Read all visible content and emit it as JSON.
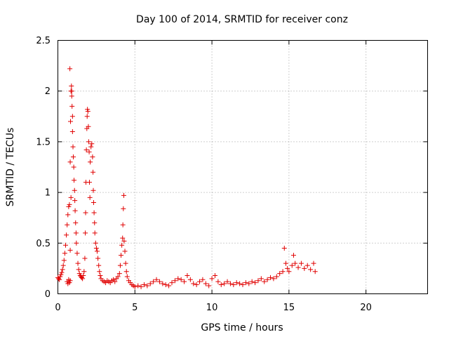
{
  "chart_data": {
    "type": "scatter",
    "title": "Day 100 of 2014, SRMTID for receiver conz",
    "xlabel": "GPS time / hours",
    "ylabel": "SRMTID / TECUs",
    "xlim": [
      0,
      24
    ],
    "ylim": [
      0,
      2.5
    ],
    "xticks": [
      0,
      5,
      10,
      15,
      20
    ],
    "xtick_labels": [
      "0",
      "5",
      "10",
      "15",
      "20"
    ],
    "yticks": [
      0,
      0.5,
      1,
      1.5,
      2,
      2.5
    ],
    "ytick_labels": [
      "0",
      "0.5",
      "1",
      "1.5",
      "2",
      "2.5"
    ],
    "grid": true,
    "marker": "+",
    "color": "#ff0000",
    "series": [
      {
        "name": "SRMTID",
        "points": [
          [
            0.0,
            0.16
          ],
          [
            0.05,
            0.15
          ],
          [
            0.1,
            0.14
          ],
          [
            0.15,
            0.17
          ],
          [
            0.2,
            0.19
          ],
          [
            0.25,
            0.21
          ],
          [
            0.3,
            0.24
          ],
          [
            0.35,
            0.28
          ],
          [
            0.4,
            0.33
          ],
          [
            0.45,
            0.4
          ],
          [
            0.5,
            0.48
          ],
          [
            0.55,
            0.58
          ],
          [
            0.6,
            0.68
          ],
          [
            0.65,
            0.78
          ],
          [
            0.7,
            0.86
          ],
          [
            0.6,
            0.12
          ],
          [
            0.65,
            0.1
          ],
          [
            0.7,
            0.14
          ],
          [
            0.75,
            0.11
          ],
          [
            0.8,
            0.13
          ],
          [
            0.75,
            0.88
          ],
          [
            0.8,
            0.43
          ],
          [
            0.85,
            0.95
          ],
          [
            0.8,
            1.3
          ],
          [
            0.82,
            1.7
          ],
          [
            0.85,
            2.0
          ],
          [
            0.88,
            2.05
          ],
          [
            0.9,
            1.95
          ],
          [
            0.92,
            1.85
          ],
          [
            0.95,
            1.75
          ],
          [
            0.78,
            2.22
          ],
          [
            0.9,
            2.0
          ],
          [
            0.95,
            1.6
          ],
          [
            0.98,
            1.45
          ],
          [
            1.0,
            1.35
          ],
          [
            1.03,
            1.25
          ],
          [
            1.05,
            1.12
          ],
          [
            1.08,
            1.02
          ],
          [
            1.1,
            0.92
          ],
          [
            1.12,
            0.82
          ],
          [
            1.15,
            0.7
          ],
          [
            1.18,
            0.6
          ],
          [
            1.2,
            0.5
          ],
          [
            1.25,
            0.4
          ],
          [
            1.3,
            0.3
          ],
          [
            1.35,
            0.24
          ],
          [
            1.4,
            0.2
          ],
          [
            1.45,
            0.18
          ],
          [
            1.5,
            0.17
          ],
          [
            1.55,
            0.16
          ],
          [
            1.6,
            0.15
          ],
          [
            1.65,
            0.18
          ],
          [
            1.7,
            0.22
          ],
          [
            1.75,
            0.35
          ],
          [
            1.78,
            0.6
          ],
          [
            1.8,
            0.8
          ],
          [
            1.82,
            1.1
          ],
          [
            1.85,
            1.42
          ],
          [
            1.88,
            1.63
          ],
          [
            1.9,
            1.75
          ],
          [
            1.92,
            1.82
          ],
          [
            1.95,
            1.8
          ],
          [
            1.98,
            1.65
          ],
          [
            2.0,
            1.5
          ],
          [
            2.03,
            1.4
          ],
          [
            2.05,
            1.1
          ],
          [
            2.08,
            0.95
          ],
          [
            2.1,
            1.3
          ],
          [
            2.15,
            1.45
          ],
          [
            2.2,
            1.48
          ],
          [
            2.25,
            1.35
          ],
          [
            2.28,
            1.2
          ],
          [
            2.3,
            1.02
          ],
          [
            2.32,
            0.9
          ],
          [
            2.35,
            0.8
          ],
          [
            2.38,
            0.7
          ],
          [
            2.4,
            0.6
          ],
          [
            2.45,
            0.5
          ],
          [
            2.5,
            0.45
          ],
          [
            2.55,
            0.42
          ],
          [
            2.6,
            0.35
          ],
          [
            2.65,
            0.28
          ],
          [
            2.7,
            0.22
          ],
          [
            2.75,
            0.18
          ],
          [
            2.8,
            0.15
          ],
          [
            2.9,
            0.13
          ],
          [
            3.0,
            0.12
          ],
          [
            3.1,
            0.11
          ],
          [
            3.2,
            0.13
          ],
          [
            3.3,
            0.12
          ],
          [
            3.4,
            0.11
          ],
          [
            3.5,
            0.13
          ],
          [
            3.6,
            0.14
          ],
          [
            3.7,
            0.12
          ],
          [
            3.8,
            0.15
          ],
          [
            3.9,
            0.17
          ],
          [
            4.0,
            0.2
          ],
          [
            4.05,
            0.28
          ],
          [
            4.1,
            0.38
          ],
          [
            4.15,
            0.48
          ],
          [
            4.2,
            0.55
          ],
          [
            4.22,
            0.68
          ],
          [
            4.25,
            0.84
          ],
          [
            4.28,
            0.97
          ],
          [
            4.3,
            0.52
          ],
          [
            4.35,
            0.42
          ],
          [
            4.4,
            0.3
          ],
          [
            4.45,
            0.22
          ],
          [
            4.5,
            0.17
          ],
          [
            4.6,
            0.13
          ],
          [
            4.7,
            0.11
          ],
          [
            4.8,
            0.09
          ],
          [
            4.9,
            0.08
          ],
          [
            5.0,
            0.07
          ],
          [
            5.2,
            0.08
          ],
          [
            5.4,
            0.07
          ],
          [
            5.6,
            0.09
          ],
          [
            5.8,
            0.08
          ],
          [
            6.0,
            0.1
          ],
          [
            6.2,
            0.12
          ],
          [
            6.4,
            0.14
          ],
          [
            6.6,
            0.12
          ],
          [
            6.8,
            0.1
          ],
          [
            7.0,
            0.09
          ],
          [
            7.2,
            0.08
          ],
          [
            7.4,
            0.11
          ],
          [
            7.6,
            0.13
          ],
          [
            7.8,
            0.15
          ],
          [
            8.0,
            0.14
          ],
          [
            8.2,
            0.12
          ],
          [
            8.4,
            0.18
          ],
          [
            8.6,
            0.14
          ],
          [
            8.8,
            0.1
          ],
          [
            9.0,
            0.09
          ],
          [
            9.2,
            0.12
          ],
          [
            9.4,
            0.14
          ],
          [
            9.6,
            0.1
          ],
          [
            9.8,
            0.08
          ],
          [
            10.0,
            0.15
          ],
          [
            10.2,
            0.18
          ],
          [
            10.4,
            0.12
          ],
          [
            10.6,
            0.09
          ],
          [
            10.8,
            0.1
          ],
          [
            11.0,
            0.12
          ],
          [
            11.2,
            0.1
          ],
          [
            11.4,
            0.09
          ],
          [
            11.6,
            0.11
          ],
          [
            11.8,
            0.1
          ],
          [
            12.0,
            0.09
          ],
          [
            12.2,
            0.11
          ],
          [
            12.4,
            0.1
          ],
          [
            12.6,
            0.12
          ],
          [
            12.8,
            0.11
          ],
          [
            13.0,
            0.13
          ],
          [
            13.2,
            0.15
          ],
          [
            13.4,
            0.12
          ],
          [
            13.6,
            0.14
          ],
          [
            13.8,
            0.16
          ],
          [
            14.0,
            0.15
          ],
          [
            14.2,
            0.17
          ],
          [
            14.4,
            0.2
          ],
          [
            14.6,
            0.22
          ],
          [
            14.7,
            0.45
          ],
          [
            14.8,
            0.3
          ],
          [
            14.9,
            0.25
          ],
          [
            15.0,
            0.22
          ],
          [
            15.2,
            0.28
          ],
          [
            15.3,
            0.38
          ],
          [
            15.4,
            0.3
          ],
          [
            15.6,
            0.26
          ],
          [
            15.8,
            0.3
          ],
          [
            16.0,
            0.25
          ],
          [
            16.2,
            0.28
          ],
          [
            16.4,
            0.24
          ],
          [
            16.6,
            0.3
          ],
          [
            16.7,
            0.22
          ]
        ]
      }
    ]
  }
}
